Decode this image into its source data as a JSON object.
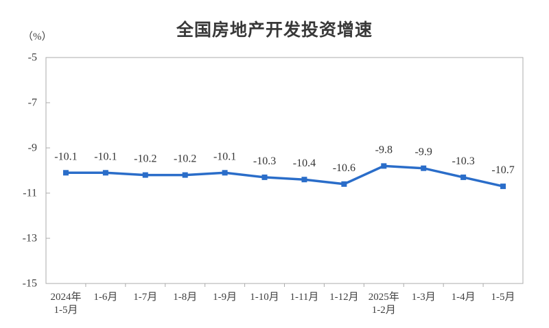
{
  "title": "全国房地产开发投资增速",
  "y_unit_label": "（%）",
  "chart_data": {
    "type": "line",
    "title": "全国房地产开发投资增速",
    "categories": [
      "2024年\n1-5月",
      "1-6月",
      "1-7月",
      "1-8月",
      "1-9月",
      "1-10月",
      "1-11月",
      "1-12月",
      "2025年\n1-2月",
      "1-3月",
      "1-4月",
      "1-5月"
    ],
    "values": [
      -10.1,
      -10.1,
      -10.2,
      -10.2,
      -10.1,
      -10.3,
      -10.4,
      -10.6,
      -9.8,
      -9.9,
      -10.3,
      -10.7
    ],
    "data_labels": [
      "-10.1",
      "-10.1",
      "-10.2",
      "-10.2",
      "-10.1",
      "-10.3",
      "-10.4",
      "-10.6",
      "-9.8",
      "-9.9",
      "-10.3",
      "-10.7"
    ],
    "xlabel": "",
    "ylabel": "（%）",
    "ylim": [
      -15,
      -5
    ],
    "y_ticks": [
      -5,
      -7,
      -9,
      -11,
      -13,
      -15
    ],
    "grid": false,
    "legend_position": "none",
    "line_color": "#2a6dc9",
    "marker": "square",
    "marker_color": "#2a6dc9",
    "axis_color": "#ababab",
    "tick_label_color": "#3f3f3f",
    "data_label_color": "#333333"
  }
}
